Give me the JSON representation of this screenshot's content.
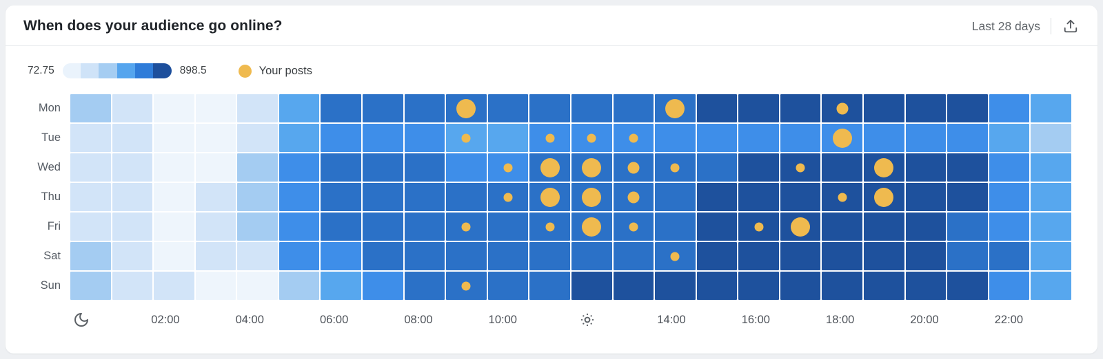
{
  "header": {
    "title": "When does your audience go online?",
    "period_label": "Last 28 days"
  },
  "legend": {
    "scale_min": "72.75",
    "scale_max": "898.5",
    "scale_colors": [
      "#eaf3fc",
      "#cfe3f8",
      "#a5cdf2",
      "#55a5ee",
      "#2f7cd9",
      "#1d4f9c"
    ],
    "posts_label": "Your posts",
    "posts_color": "#efba4f"
  },
  "chart_data": {
    "type": "heatmap",
    "title": "When does your audience go online?",
    "period": "Last 28 days",
    "rows": [
      "Mon",
      "Tue",
      "Wed",
      "Thu",
      "Fri",
      "Sat",
      "Sun"
    ],
    "columns": [
      "00:00",
      "01:00",
      "02:00",
      "03:00",
      "04:00",
      "05:00",
      "06:00",
      "07:00",
      "08:00",
      "09:00",
      "10:00",
      "11:00",
      "12:00",
      "13:00",
      "14:00",
      "15:00",
      "16:00",
      "17:00",
      "18:00",
      "19:00",
      "20:00",
      "21:00",
      "22:00",
      "23:00"
    ],
    "value_range": [
      72.75,
      898.5
    ],
    "palette": [
      "#eef5fc",
      "#d2e4f8",
      "#a4ccf2",
      "#57a7ee",
      "#3e8ee9",
      "#2b71c7",
      "#1e519d"
    ],
    "level_value_estimates": [
      110,
      200,
      330,
      480,
      560,
      680,
      860
    ],
    "levels": [
      [
        2,
        1,
        0,
        0,
        1,
        3,
        5,
        5,
        5,
        5,
        5,
        5,
        5,
        5,
        5,
        6,
        6,
        6,
        6,
        6,
        6,
        6,
        4,
        3
      ],
      [
        1,
        1,
        0,
        0,
        1,
        3,
        4,
        4,
        4,
        3,
        3,
        4,
        4,
        4,
        4,
        4,
        4,
        4,
        4,
        4,
        4,
        4,
        3,
        2
      ],
      [
        1,
        1,
        0,
        0,
        2,
        4,
        5,
        5,
        5,
        4,
        4,
        5,
        5,
        5,
        5,
        5,
        6,
        6,
        6,
        6,
        6,
        6,
        4,
        3
      ],
      [
        1,
        1,
        0,
        1,
        2,
        4,
        5,
        5,
        5,
        5,
        5,
        5,
        5,
        5,
        5,
        6,
        6,
        6,
        6,
        6,
        6,
        6,
        4,
        3
      ],
      [
        1,
        1,
        0,
        1,
        2,
        4,
        5,
        5,
        5,
        5,
        5,
        5,
        5,
        5,
        5,
        6,
        6,
        6,
        6,
        6,
        6,
        5,
        4,
        3
      ],
      [
        2,
        1,
        0,
        1,
        1,
        4,
        4,
        5,
        5,
        5,
        5,
        5,
        5,
        5,
        5,
        6,
        6,
        6,
        6,
        6,
        6,
        5,
        5,
        3
      ],
      [
        2,
        1,
        1,
        0,
        0,
        2,
        3,
        4,
        5,
        5,
        5,
        5,
        6,
        6,
        6,
        6,
        6,
        6,
        6,
        6,
        6,
        6,
        4,
        3
      ]
    ],
    "posts_marker_color": "#efba4f",
    "posts": [
      {
        "row": 0,
        "col": 9,
        "size": "large"
      },
      {
        "row": 0,
        "col": 14,
        "size": "large"
      },
      {
        "row": 0,
        "col": 18,
        "size": "medium"
      },
      {
        "row": 1,
        "col": 9,
        "size": "small"
      },
      {
        "row": 1,
        "col": 11,
        "size": "small"
      },
      {
        "row": 1,
        "col": 12,
        "size": "small"
      },
      {
        "row": 1,
        "col": 13,
        "size": "small"
      },
      {
        "row": 1,
        "col": 18,
        "size": "large"
      },
      {
        "row": 2,
        "col": 10,
        "size": "small"
      },
      {
        "row": 2,
        "col": 11,
        "size": "large"
      },
      {
        "row": 2,
        "col": 12,
        "size": "large"
      },
      {
        "row": 2,
        "col": 13,
        "size": "medium"
      },
      {
        "row": 2,
        "col": 14,
        "size": "small"
      },
      {
        "row": 2,
        "col": 17,
        "size": "small"
      },
      {
        "row": 2,
        "col": 19,
        "size": "large"
      },
      {
        "row": 3,
        "col": 10,
        "size": "small"
      },
      {
        "row": 3,
        "col": 11,
        "size": "large"
      },
      {
        "row": 3,
        "col": 12,
        "size": "large"
      },
      {
        "row": 3,
        "col": 13,
        "size": "medium"
      },
      {
        "row": 3,
        "col": 18,
        "size": "small"
      },
      {
        "row": 3,
        "col": 19,
        "size": "large"
      },
      {
        "row": 4,
        "col": 9,
        "size": "small"
      },
      {
        "row": 4,
        "col": 11,
        "size": "small"
      },
      {
        "row": 4,
        "col": 12,
        "size": "large"
      },
      {
        "row": 4,
        "col": 13,
        "size": "small"
      },
      {
        "row": 4,
        "col": 16,
        "size": "small"
      },
      {
        "row": 4,
        "col": 17,
        "size": "large"
      },
      {
        "row": 5,
        "col": 14,
        "size": "small"
      },
      {
        "row": 6,
        "col": 9,
        "size": "small"
      }
    ],
    "x_axis": [
      {
        "col": 0,
        "type": "icon",
        "icon": "moon-icon"
      },
      {
        "col": 2,
        "type": "label",
        "label": "02:00"
      },
      {
        "col": 4,
        "type": "label",
        "label": "04:00"
      },
      {
        "col": 6,
        "type": "label",
        "label": "06:00"
      },
      {
        "col": 8,
        "type": "label",
        "label": "08:00"
      },
      {
        "col": 10,
        "type": "label",
        "label": "10:00"
      },
      {
        "col": 12,
        "type": "icon",
        "icon": "sun-icon"
      },
      {
        "col": 14,
        "type": "label",
        "label": "14:00"
      },
      {
        "col": 16,
        "type": "label",
        "label": "16:00"
      },
      {
        "col": 18,
        "type": "label",
        "label": "18:00"
      },
      {
        "col": 20,
        "type": "label",
        "label": "20:00"
      },
      {
        "col": 22,
        "type": "label",
        "label": "22:00"
      }
    ],
    "legend_position": "top",
    "grid": "white 2px gaps"
  }
}
